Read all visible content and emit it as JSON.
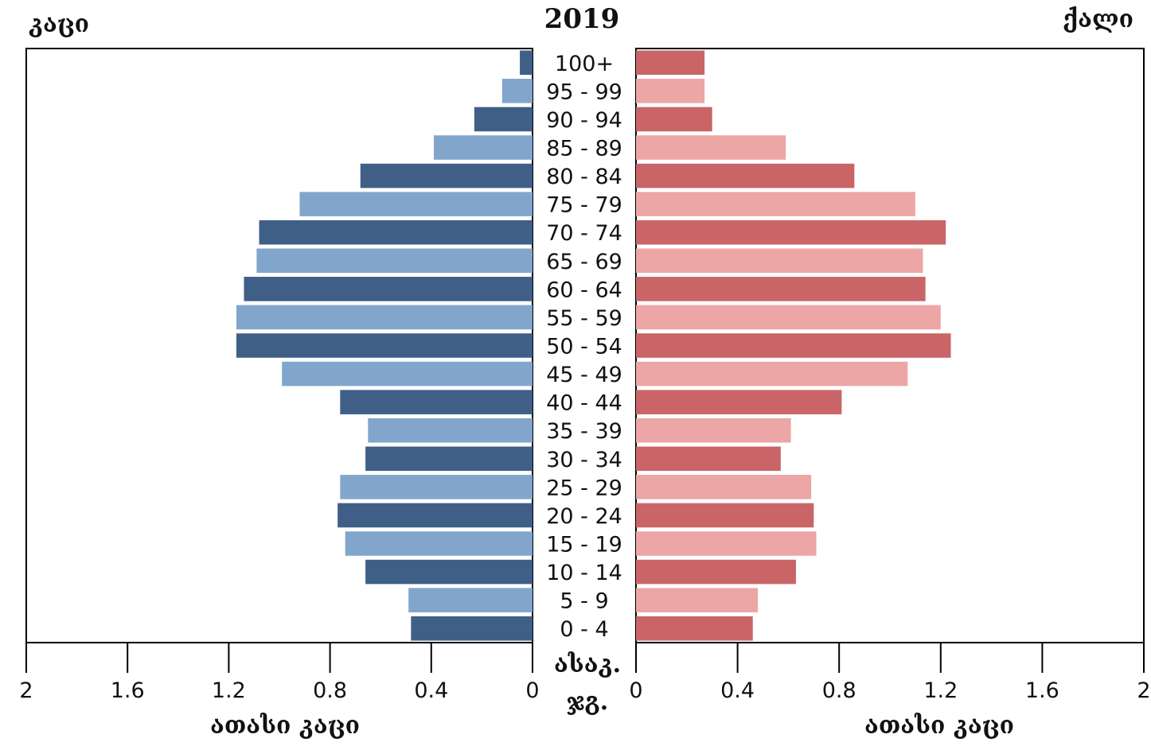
{
  "chart_data": {
    "type": "bar",
    "orientation": "horizontal",
    "style": "population-pyramid",
    "title": "2019",
    "male_label": "კაცი",
    "female_label": "ქალი",
    "center_label_line1": "ასაკ.",
    "center_label_line2": "ჯგ.",
    "xlabel_left": "ათასი კაცი",
    "xlabel_right": "ათასი კაცი",
    "xlim": [
      0,
      2
    ],
    "ticks": [
      "2",
      "1.6",
      "1.2",
      "0.8",
      "0.4",
      "0"
    ],
    "ticks_right": [
      "0",
      "0.4",
      "0.8",
      "1.2",
      "1.6",
      "2"
    ],
    "tick_values": [
      2,
      1.6,
      1.2,
      0.8,
      0.4,
      0
    ],
    "tick_values_right": [
      0,
      0.4,
      0.8,
      1.2,
      1.6,
      2
    ],
    "categories": [
      "100+",
      "95 - 99",
      "90 - 94",
      "85 - 89",
      "80 - 84",
      "75 - 79",
      "70 - 74",
      "65 - 69",
      "60 - 64",
      "55 - 59",
      "50 - 54",
      "45 - 49",
      "40 - 44",
      "35 - 39",
      "30 - 34",
      "25 - 29",
      "20 - 24",
      "15 - 19",
      "10 - 14",
      "5 - 9",
      "0 - 4"
    ],
    "series": [
      {
        "name": "კაცი",
        "side": "left",
        "values": [
          0.05,
          0.12,
          0.23,
          0.39,
          0.68,
          0.92,
          1.08,
          1.09,
          1.14,
          1.17,
          1.17,
          0.99,
          0.76,
          0.65,
          0.66,
          0.76,
          0.77,
          0.74,
          0.66,
          0.49,
          0.48
        ],
        "colors": [
          "#3f5f87",
          "#82a6cb"
        ]
      },
      {
        "name": "ქალი",
        "side": "right",
        "values": [
          0.27,
          0.27,
          0.3,
          0.59,
          0.86,
          1.1,
          1.22,
          1.13,
          1.14,
          1.2,
          1.24,
          1.07,
          0.81,
          0.61,
          0.57,
          0.69,
          0.7,
          0.71,
          0.63,
          0.48,
          0.46
        ],
        "colors": [
          "#c96567",
          "#eca6a6"
        ]
      }
    ]
  }
}
